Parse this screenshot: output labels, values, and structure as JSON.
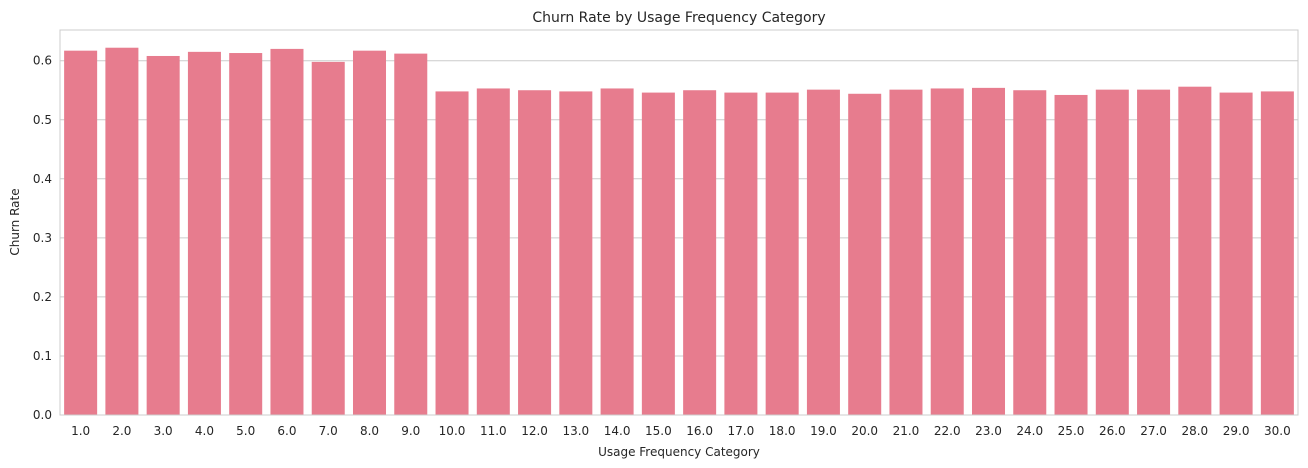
{
  "chart_data": {
    "type": "bar",
    "title": "Churn Rate by Usage Frequency Category",
    "xlabel": "Usage Frequency Category",
    "ylabel": "Churn Rate",
    "categories": [
      "1.0",
      "2.0",
      "3.0",
      "4.0",
      "5.0",
      "6.0",
      "7.0",
      "8.0",
      "9.0",
      "10.0",
      "11.0",
      "12.0",
      "13.0",
      "14.0",
      "15.0",
      "16.0",
      "17.0",
      "18.0",
      "19.0",
      "20.0",
      "21.0",
      "22.0",
      "23.0",
      "24.0",
      "25.0",
      "26.0",
      "27.0",
      "28.0",
      "29.0",
      "30.0"
    ],
    "values": [
      0.617,
      0.622,
      0.608,
      0.615,
      0.613,
      0.62,
      0.598,
      0.617,
      0.612,
      0.548,
      0.553,
      0.55,
      0.548,
      0.553,
      0.546,
      0.55,
      0.546,
      0.546,
      0.551,
      0.544,
      0.551,
      0.553,
      0.554,
      0.55,
      0.542,
      0.551,
      0.551,
      0.556,
      0.546,
      0.548
    ],
    "ylim": [
      0,
      0.652
    ],
    "yticks": [
      "0.0",
      "0.1",
      "0.2",
      "0.3",
      "0.4",
      "0.5",
      "0.6"
    ],
    "grid": true,
    "bar_color": "#e77c8e"
  }
}
